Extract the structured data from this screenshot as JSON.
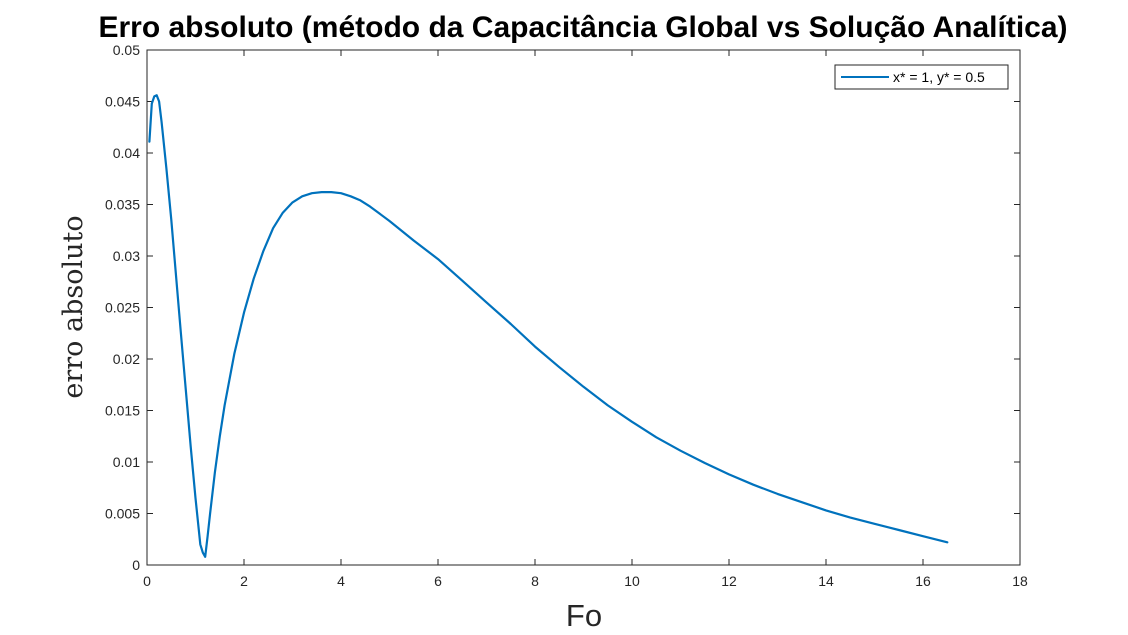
{
  "chart_data": {
    "type": "line",
    "title": "Erro absoluto (método da Capacitância Global vs Solução Analítica)",
    "xlabel": "Fo",
    "ylabel": "erro absoluto",
    "xlim": [
      0,
      18
    ],
    "ylim": [
      0,
      0.05
    ],
    "xticks": [
      0,
      2,
      4,
      6,
      8,
      10,
      12,
      14,
      16,
      18
    ],
    "xtick_labels": [
      "0",
      "2",
      "4",
      "6",
      "8",
      "10",
      "12",
      "14",
      "16",
      "18"
    ],
    "yticks": [
      0,
      0.005,
      0.01,
      0.015,
      0.02,
      0.025,
      0.03,
      0.035,
      0.04,
      0.045,
      0.05
    ],
    "ytick_labels": [
      "0",
      "0.005",
      "0.01",
      "0.015",
      "0.02",
      "0.025",
      "0.03",
      "0.035",
      "0.04",
      "0.045",
      "0.05"
    ],
    "grid": false,
    "legend": "top-right",
    "series": [
      {
        "name": "x* = 1, y* = 0.5",
        "color": "#0072BD",
        "x": [
          0.05,
          0.1,
          0.15,
          0.2,
          0.25,
          0.3,
          0.4,
          0.5,
          0.6,
          0.7,
          0.8,
          0.9,
          1.0,
          1.1,
          1.15,
          1.2,
          1.25,
          1.3,
          1.4,
          1.5,
          1.6,
          1.8,
          2.0,
          2.2,
          2.4,
          2.6,
          2.8,
          3.0,
          3.2,
          3.4,
          3.6,
          3.8,
          4.0,
          4.2,
          4.4,
          4.6,
          4.8,
          5.0,
          5.5,
          6.0,
          6.5,
          7.0,
          7.5,
          8.0,
          8.5,
          9.0,
          9.5,
          10.0,
          10.5,
          11.0,
          11.5,
          12.0,
          12.5,
          13.0,
          13.5,
          14.0,
          14.5,
          15.0,
          15.5,
          16.0,
          16.5
        ],
        "y": [
          0.0411,
          0.0448,
          0.0455,
          0.0456,
          0.045,
          0.043,
          0.0385,
          0.0335,
          0.028,
          0.0225,
          0.017,
          0.0115,
          0.0065,
          0.002,
          0.0012,
          0.0008,
          0.0028,
          0.005,
          0.009,
          0.0125,
          0.0155,
          0.0205,
          0.0245,
          0.0278,
          0.0305,
          0.0327,
          0.0342,
          0.0352,
          0.0358,
          0.0361,
          0.0362,
          0.0362,
          0.0361,
          0.0358,
          0.0354,
          0.0348,
          0.0341,
          0.0334,
          0.0315,
          0.0297,
          0.0276,
          0.0255,
          0.0234,
          0.0212,
          0.0192,
          0.0173,
          0.0155,
          0.0139,
          0.0124,
          0.0111,
          0.0099,
          0.0088,
          0.0078,
          0.0069,
          0.0061,
          0.0053,
          0.0046,
          0.004,
          0.0034,
          0.0028,
          0.0022
        ]
      }
    ]
  }
}
